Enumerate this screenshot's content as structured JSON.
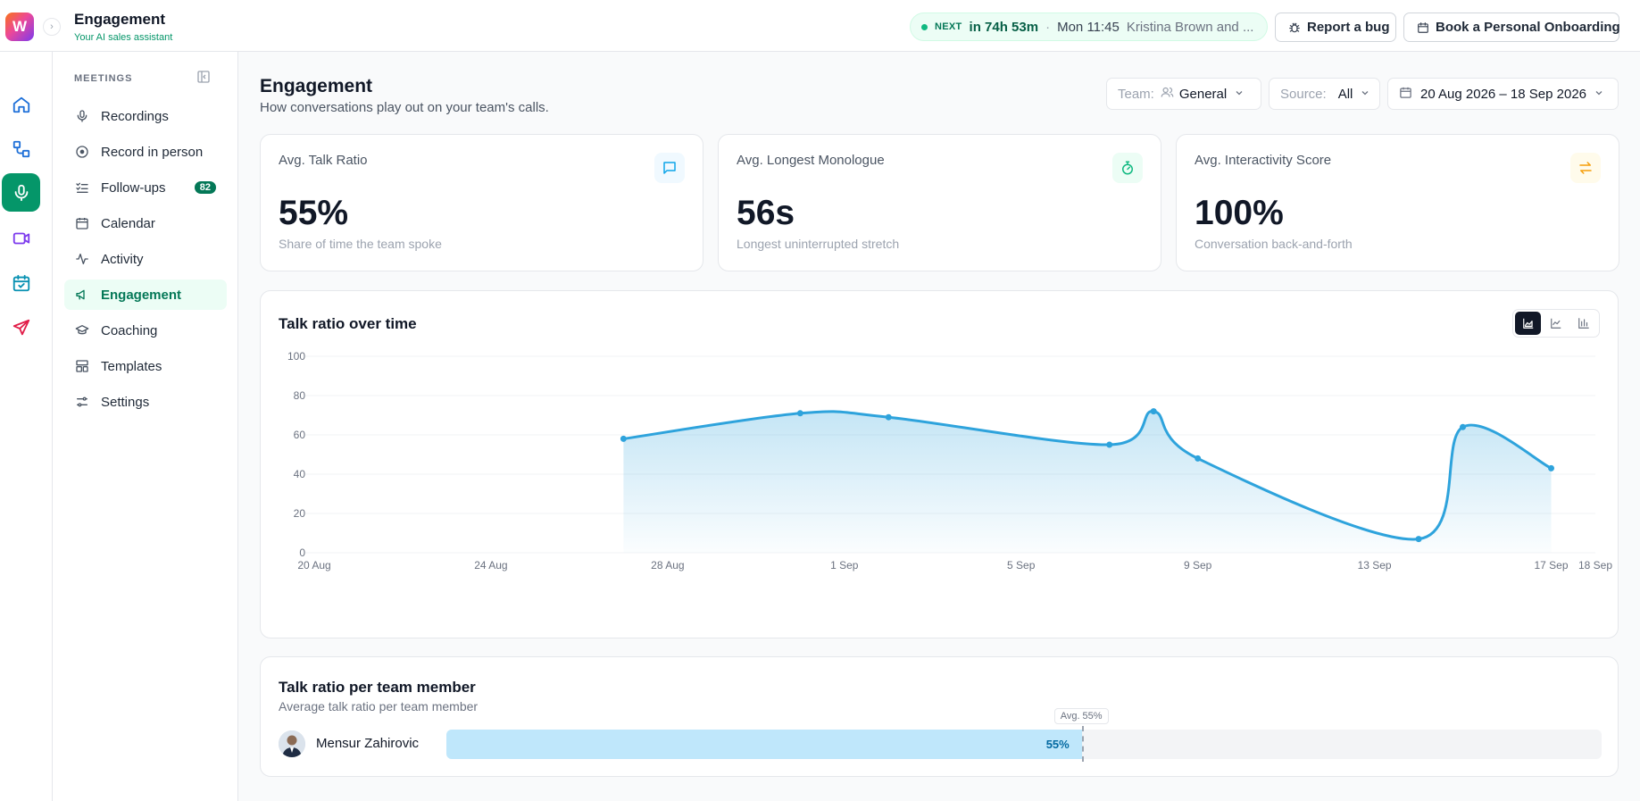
{
  "header": {
    "app_logo": "W",
    "app_title": "Engagement",
    "app_subtitle": "Your AI sales assistant",
    "next": {
      "label": "NEXT",
      "countdown": "in 74h 53m",
      "separator": "·",
      "when": "Mon 11:45",
      "who": "Kristina Brown and ..."
    },
    "report_bug": "Report a bug",
    "book_onboarding": "Book a Personal Onboarding"
  },
  "rail": {
    "items": [
      "home-icon",
      "workflow-icon",
      "microphone-icon",
      "video-icon",
      "calendar-check-icon",
      "send-icon"
    ],
    "active": "microphone-icon",
    "accent": "#059669"
  },
  "sidebar": {
    "heading": "MEETINGS",
    "items": [
      {
        "label": "Recordings",
        "icon": "microphone-icon"
      },
      {
        "label": "Record in person",
        "icon": "record-icon"
      },
      {
        "label": "Follow-ups",
        "icon": "checklist-icon",
        "badge": "82"
      },
      {
        "label": "Calendar",
        "icon": "calendar-icon"
      },
      {
        "label": "Activity",
        "icon": "activity-icon"
      },
      {
        "label": "Engagement",
        "icon": "megaphone-icon",
        "active": true
      },
      {
        "label": "Coaching",
        "icon": "graduation-cap-icon"
      },
      {
        "label": "Templates",
        "icon": "layout-icon"
      },
      {
        "label": "Settings",
        "icon": "sliders-icon"
      }
    ]
  },
  "page": {
    "title": "Engagement",
    "description": "How conversations play out on your team's calls."
  },
  "filters": {
    "team": {
      "label": "Team:",
      "value": "General"
    },
    "source": {
      "label": "Source:",
      "value": "All"
    },
    "date_range": "20 Aug 2026 – 18 Sep 2026"
  },
  "stats": [
    {
      "label": "Avg. Talk Ratio",
      "value": "55%",
      "sub": "Share of time the team spoke",
      "icon": "message-square-icon",
      "color": "#0ea5e9"
    },
    {
      "label": "Avg. Longest Monologue",
      "value": "56s",
      "sub": "Longest uninterrupted stretch",
      "icon": "timer-icon",
      "color": "#10b981"
    },
    {
      "label": "Avg. Interactivity Score",
      "value": "100%",
      "sub": "Conversation back-and-forth",
      "icon": "arrows-swap-icon",
      "color": "#f59e0b"
    }
  ],
  "chart_title": "Talk ratio over time",
  "chart_toggle": {
    "options": [
      "area-chart-icon",
      "line-chart-icon",
      "bar-chart-icon"
    ],
    "active": "area-chart-icon"
  },
  "chart_data": {
    "type": "area",
    "title": "Talk ratio over time",
    "xlabel": "",
    "ylabel": "",
    "xlim": [
      "2026-08-20",
      "2026-09-18"
    ],
    "ylim": [
      0,
      100
    ],
    "y_ticks": [
      0,
      20,
      40,
      60,
      80,
      100
    ],
    "x_tick_labels": [
      "20 Aug",
      "24 Aug",
      "28 Aug",
      "1 Sep",
      "5 Sep",
      "9 Sep",
      "13 Sep",
      "17 Sep",
      "18 Sep"
    ],
    "x_tick_dates": [
      "2026-08-20",
      "2026-08-24",
      "2026-08-28",
      "2026-09-01",
      "2026-09-05",
      "2026-09-09",
      "2026-09-13",
      "2026-09-17",
      "2026-09-18"
    ],
    "grid": true,
    "color": "#2ea3dc",
    "points": [
      {
        "x": "2026-08-27",
        "y": 58
      },
      {
        "x": "2026-08-31",
        "y": 71
      },
      {
        "x": "2026-09-02",
        "y": 69
      },
      {
        "x": "2026-09-07",
        "y": 55
      },
      {
        "x": "2026-09-08",
        "y": 72
      },
      {
        "x": "2026-09-09",
        "y": 48
      },
      {
        "x": "2026-09-14",
        "y": 7
      },
      {
        "x": "2026-09-15",
        "y": 64
      },
      {
        "x": "2026-09-17",
        "y": 43
      }
    ]
  },
  "members": {
    "title": "Talk ratio per team member",
    "subtitle": "Average talk ratio per team member",
    "avg_label": "Avg. 55%",
    "avg_value": 55,
    "rows": [
      {
        "name": "Mensur Zahirovic",
        "value": 55,
        "value_label": "55%"
      }
    ]
  }
}
